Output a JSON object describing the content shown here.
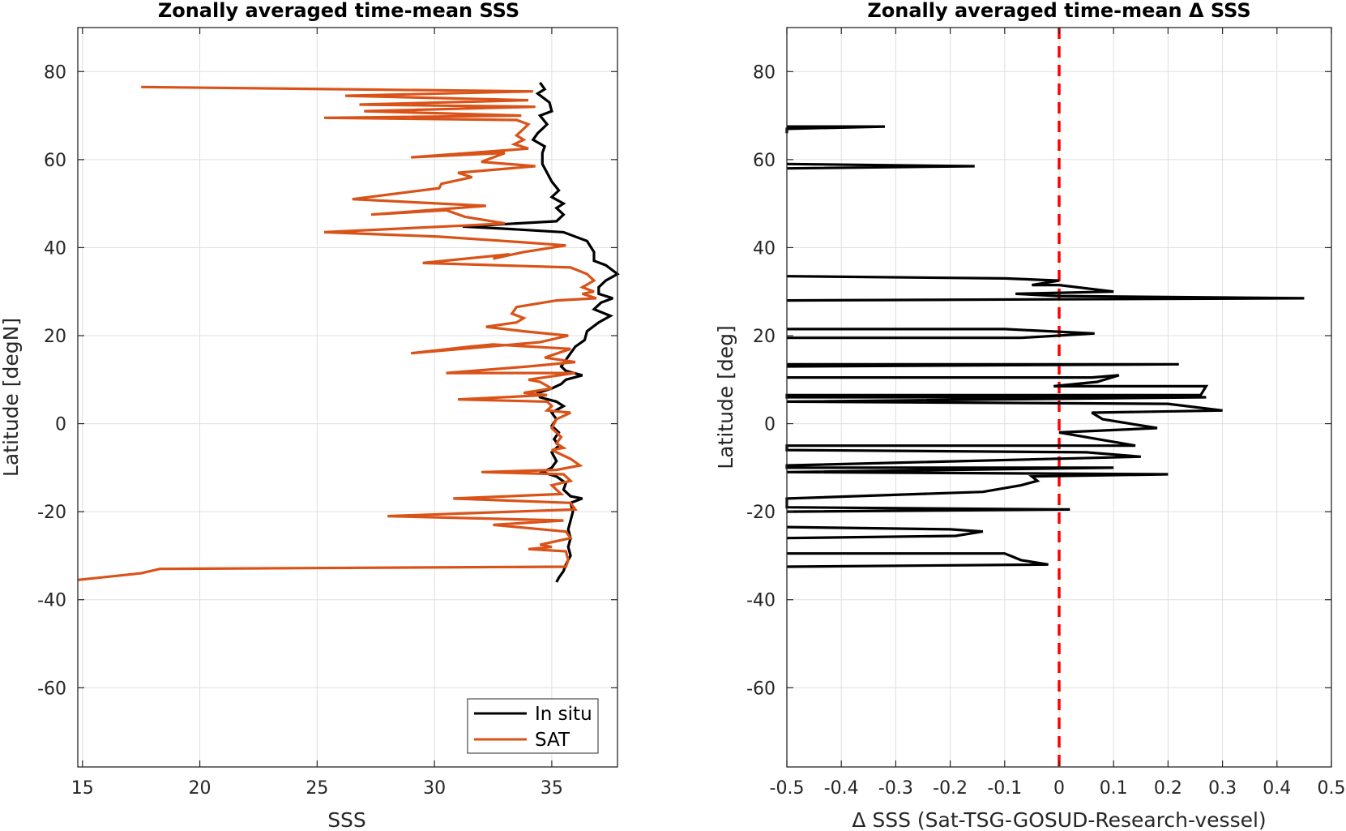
{
  "chart_data": [
    {
      "type": "line",
      "title": "Zonally averaged time-mean SSS",
      "xlabel": "SSS",
      "ylabel": "Latitude [degN]",
      "xlim": [
        14.8,
        37.8
      ],
      "ylim": [
        -78,
        90
      ],
      "xticks": [
        15,
        20,
        25,
        30,
        35
      ],
      "yticks": [
        80,
        60,
        40,
        20,
        0,
        -20,
        -40,
        -60
      ],
      "grid": true,
      "legend_position": "bottom-right",
      "series": [
        {
          "name": "In situ",
          "color": "#000000",
          "points": [
            [
              34.5,
              77.5
            ],
            [
              34.7,
              76
            ],
            [
              34.4,
              75
            ],
            [
              34.9,
              73
            ],
            [
              35.0,
              71
            ],
            [
              34.5,
              70
            ],
            [
              34.8,
              68
            ],
            [
              34.4,
              66
            ],
            [
              34.2,
              64.5
            ],
            [
              34.7,
              63
            ],
            [
              34.6,
              61.5
            ],
            [
              34.6,
              59
            ],
            [
              34.8,
              57
            ],
            [
              35.0,
              55
            ],
            [
              35.3,
              53
            ],
            [
              35.0,
              51.5
            ],
            [
              35.5,
              50
            ],
            [
              35.2,
              49
            ],
            [
              35.5,
              47.5
            ],
            [
              35.2,
              46
            ],
            [
              33.5,
              45.5
            ],
            [
              31.2,
              44.8
            ],
            [
              33.0,
              44.3
            ],
            [
              35.5,
              43.5
            ],
            [
              36.5,
              41.5
            ],
            [
              36.8,
              39
            ],
            [
              36.8,
              37
            ],
            [
              37.3,
              36
            ],
            [
              37.8,
              34
            ],
            [
              37.3,
              32.5
            ],
            [
              37.0,
              31
            ],
            [
              37.0,
              29.5
            ],
            [
              37.6,
              28.5
            ],
            [
              37.1,
              27.5
            ],
            [
              36.8,
              26
            ],
            [
              37.5,
              24.5
            ],
            [
              37.0,
              23
            ],
            [
              36.5,
              21
            ],
            [
              36.4,
              19
            ],
            [
              36.0,
              17.5
            ],
            [
              35.8,
              16
            ],
            [
              35.6,
              14.5
            ],
            [
              35.4,
              13
            ],
            [
              35.6,
              12
            ],
            [
              36.3,
              11
            ],
            [
              35.6,
              10
            ],
            [
              35.4,
              9
            ],
            [
              35.0,
              8
            ],
            [
              34.4,
              7
            ],
            [
              34.5,
              6
            ],
            [
              35.2,
              5
            ],
            [
              35.5,
              4
            ],
            [
              35.0,
              2.5
            ],
            [
              35.2,
              1
            ],
            [
              35.0,
              -0.5
            ],
            [
              35.3,
              -2
            ],
            [
              35.1,
              -3.5
            ],
            [
              35.3,
              -5
            ],
            [
              35.0,
              -6.5
            ],
            [
              35.2,
              -8.5
            ],
            [
              35.0,
              -10
            ],
            [
              34.6,
              -11
            ],
            [
              35.2,
              -12
            ],
            [
              35.6,
              -13.5
            ],
            [
              35.5,
              -15
            ],
            [
              35.8,
              -16.5
            ],
            [
              36.3,
              -17
            ],
            [
              35.8,
              -18
            ],
            [
              35.9,
              -20
            ],
            [
              35.8,
              -22
            ],
            [
              35.7,
              -24
            ],
            [
              35.8,
              -26
            ],
            [
              35.7,
              -28
            ],
            [
              35.8,
              -30
            ],
            [
              35.6,
              -32
            ],
            [
              35.5,
              -33.5
            ],
            [
              35.3,
              -35
            ],
            [
              35.2,
              -36
            ]
          ]
        },
        {
          "name": "SAT",
          "color": "#d95319",
          "points": [
            [
              17.5,
              76.5
            ],
            [
              34.2,
              75.5
            ],
            [
              26.2,
              74.5
            ],
            [
              34.0,
              73.5
            ],
            [
              26.8,
              72.5
            ],
            [
              34.3,
              72
            ],
            [
              27.0,
              71
            ],
            [
              33.7,
              70
            ],
            [
              25.3,
              69.5
            ],
            [
              33.5,
              69
            ],
            [
              34.0,
              68
            ],
            [
              33.8,
              67
            ],
            [
              33.5,
              65.5
            ],
            [
              33.8,
              64.5
            ],
            [
              33.4,
              63.5
            ],
            [
              34.0,
              62.5
            ],
            [
              29.0,
              60.5
            ],
            [
              33.0,
              61.5
            ],
            [
              32.0,
              59.5
            ],
            [
              34.3,
              58.5
            ],
            [
              31.0,
              57
            ],
            [
              31.6,
              56
            ],
            [
              30.3,
              54.5
            ],
            [
              30.2,
              53.5
            ],
            [
              26.5,
              51
            ],
            [
              32.2,
              49.5
            ],
            [
              27.3,
              47.5
            ],
            [
              30.5,
              48.5
            ],
            [
              31.3,
              47
            ],
            [
              33.0,
              45.5
            ],
            [
              31.2,
              45
            ],
            [
              25.3,
              43.5
            ],
            [
              30.2,
              42.5
            ],
            [
              33.0,
              41.5
            ],
            [
              35.6,
              40.5
            ],
            [
              33.8,
              39
            ],
            [
              32.5,
              37.5
            ],
            [
              33.2,
              38.5
            ],
            [
              29.5,
              36.5
            ],
            [
              35.8,
              35.5
            ],
            [
              36.5,
              34
            ],
            [
              36.8,
              32.5
            ],
            [
              36.3,
              31
            ],
            [
              36.8,
              30
            ],
            [
              36.3,
              29.5
            ],
            [
              36.9,
              28.5
            ],
            [
              35.2,
              28
            ],
            [
              33.5,
              26.5
            ],
            [
              33.3,
              25
            ],
            [
              33.8,
              24
            ],
            [
              33.5,
              23
            ],
            [
              32.2,
              22
            ],
            [
              33.8,
              21
            ],
            [
              35.7,
              20
            ],
            [
              34.5,
              18.5
            ],
            [
              29.0,
              16
            ],
            [
              31.5,
              17.5
            ],
            [
              32.5,
              18
            ],
            [
              35.8,
              17
            ],
            [
              34.7,
              15
            ],
            [
              36.0,
              14
            ],
            [
              34.0,
              13
            ],
            [
              30.5,
              11.5
            ],
            [
              36.0,
              11.5
            ],
            [
              34.0,
              10
            ],
            [
              34.5,
              9.5
            ],
            [
              35.0,
              8
            ],
            [
              33.8,
              7
            ],
            [
              34.8,
              6.5
            ],
            [
              31.0,
              5.5
            ],
            [
              34.8,
              5
            ],
            [
              35.0,
              4
            ],
            [
              34.8,
              3
            ],
            [
              35.8,
              2.5
            ],
            [
              35.2,
              1
            ],
            [
              35.0,
              -1
            ],
            [
              35.4,
              -3
            ],
            [
              35.2,
              -4.5
            ],
            [
              35.5,
              -5.5
            ],
            [
              35.0,
              -6
            ],
            [
              35.8,
              -8
            ],
            [
              36.2,
              -9.5
            ],
            [
              35.2,
              -10.5
            ],
            [
              32.0,
              -11
            ],
            [
              35.5,
              -11.5
            ],
            [
              35.8,
              -13
            ],
            [
              35.0,
              -14
            ],
            [
              35.4,
              -16
            ],
            [
              30.8,
              -17
            ],
            [
              35.8,
              -18
            ],
            [
              36.0,
              -19.5
            ],
            [
              28.0,
              -21
            ],
            [
              35.5,
              -22
            ],
            [
              32.5,
              -23
            ],
            [
              35.6,
              -24.5
            ],
            [
              35.8,
              -26
            ],
            [
              34.5,
              -27.5
            ],
            [
              35.0,
              -28
            ],
            [
              34.0,
              -28.5
            ],
            [
              35.6,
              -29
            ],
            [
              35.7,
              -31
            ],
            [
              35.6,
              -32.5
            ],
            [
              18.3,
              -33
            ],
            [
              17.5,
              -34
            ],
            [
              14.8,
              -35.5
            ]
          ]
        }
      ]
    },
    {
      "type": "line",
      "title": "Zonally averaged time-mean Δ SSS",
      "xlabel": "Δ SSS (Sat-TSG-GOSUD-Research-vessel)",
      "ylabel": "Latitude [deg]",
      "xlim": [
        -0.5,
        0.5
      ],
      "ylim": [
        -78,
        90
      ],
      "xticks": [
        -0.5,
        -0.4,
        -0.3,
        -0.2,
        -0.1,
        0,
        0.1,
        0.2,
        0.3,
        0.4,
        0.5
      ],
      "yticks": [
        80,
        60,
        40,
        20,
        0,
        -20,
        -40,
        -60
      ],
      "grid": true,
      "reference_line": {
        "x": 0,
        "style": "dashed",
        "color": "#ff0000"
      },
      "series": [
        {
          "color": "#000000",
          "segments": [
            [
              [
                -0.5,
                67.5
              ],
              [
                -0.32,
                67.5
              ],
              [
                -0.5,
                67
              ],
              [
                -0.5,
                66
              ]
            ],
            [
              [
                -0.5,
                59
              ],
              [
                -0.155,
                58.5
              ],
              [
                -0.5,
                58
              ]
            ],
            [
              [
                -0.5,
                33.5
              ],
              [
                -0.1,
                33
              ],
              [
                0,
                32.5
              ],
              [
                -0.05,
                31.5
              ],
              [
                0,
                31.5
              ],
              [
                0.1,
                30
              ],
              [
                -0.08,
                29.5
              ],
              [
                0,
                29
              ],
              [
                0.45,
                28.5
              ],
              [
                -0.5,
                28
              ]
            ],
            [
              [
                -0.5,
                21.5
              ],
              [
                -0.1,
                21.5
              ],
              [
                0.065,
                20.5
              ],
              [
                -0.07,
                19.5
              ],
              [
                -0.5,
                19.5
              ]
            ],
            [
              [
                -0.5,
                13.5
              ],
              [
                0.22,
                13.5
              ],
              [
                -0.5,
                13
              ]
            ],
            [
              [
                -0.5,
                10.5
              ],
              [
                0.06,
                10.5
              ],
              [
                0.11,
                11
              ],
              [
                0.07,
                9.5
              ],
              [
                -0.01,
                8.5
              ],
              [
                0.27,
                8.5
              ],
              [
                0.26,
                6.5
              ],
              [
                -0.5,
                6.5
              ],
              [
                -0.5,
                6
              ],
              [
                0.27,
                6
              ],
              [
                -0.5,
                5
              ],
              [
                0.2,
                4.5
              ],
              [
                0.3,
                3
              ],
              [
                0.06,
                2.5
              ],
              [
                0.08,
                1
              ],
              [
                0.18,
                -1
              ],
              [
                0.0,
                -2
              ],
              [
                0.14,
                -5
              ],
              [
                -0.5,
                -5
              ],
              [
                -0.5,
                -6
              ],
              [
                0.05,
                -6.5
              ],
              [
                0.15,
                -7.5
              ],
              [
                -0.5,
                -9.5
              ],
              [
                -0.5,
                -10
              ],
              [
                0.1,
                -10
              ],
              [
                -0.5,
                -11
              ],
              [
                0.2,
                -11.5
              ],
              [
                -0.05,
                -12
              ],
              [
                -0.04,
                -13
              ],
              [
                -0.07,
                -14
              ],
              [
                -0.14,
                -15.5
              ],
              [
                -0.5,
                -17
              ],
              [
                -0.5,
                -19
              ],
              [
                0.0,
                -19.5
              ],
              [
                0.02,
                -19.5
              ],
              [
                -0.5,
                -20
              ]
            ],
            [
              [
                -0.5,
                -23.5
              ],
              [
                -0.2,
                -24
              ],
              [
                -0.14,
                -24.5
              ],
              [
                -0.19,
                -25.5
              ],
              [
                -0.5,
                -26
              ]
            ],
            [
              [
                -0.5,
                -29.5
              ],
              [
                -0.1,
                -29.5
              ],
              [
                -0.09,
                -30
              ],
              [
                -0.07,
                -31
              ],
              [
                -0.02,
                -32
              ],
              [
                -0.5,
                -32.5
              ]
            ]
          ]
        }
      ]
    }
  ],
  "legend": {
    "entries": [
      {
        "label": "In situ",
        "color": "#000000"
      },
      {
        "label": "SAT",
        "color": "#d95319"
      }
    ]
  }
}
